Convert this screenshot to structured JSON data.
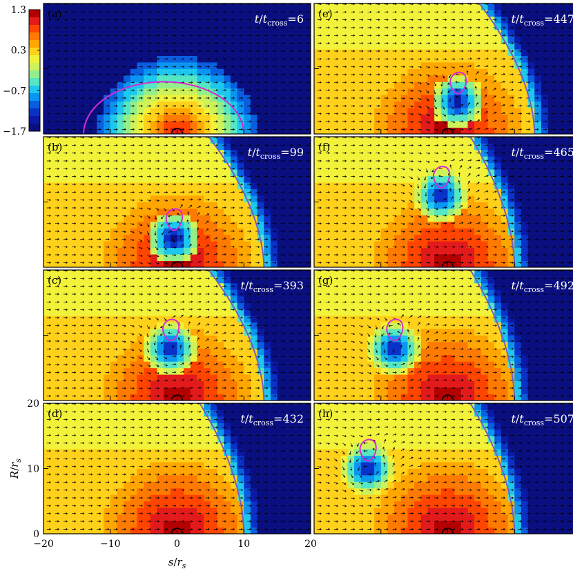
{
  "colorbar": {
    "ticks": [
      {
        "value": 1.3,
        "label": "1.3"
      },
      {
        "value": 0.3,
        "label": "0.3"
      },
      {
        "value": -0.7,
        "label": "−0.7"
      },
      {
        "value": -1.7,
        "label": "−1.7"
      }
    ],
    "range": [
      -1.7,
      1.3
    ],
    "levels": [
      1.3,
      1.1,
      0.9,
      0.7,
      0.5,
      0.3,
      0.1,
      -0.1,
      -0.3,
      -0.5,
      -0.7,
      -0.9,
      -1.1,
      -1.3,
      -1.5,
      -1.7
    ],
    "colors": [
      "#b30000",
      "#e31a1c",
      "#ff4500",
      "#ff7a00",
      "#ffa600",
      "#ffd11a",
      "#f2f23a",
      "#cdf25a",
      "#93ef8a",
      "#55e6c3",
      "#1dc7ee",
      "#0a95f0",
      "#0a5ee0",
      "#0a32c8",
      "#0a1aa6",
      "#0a0f80"
    ]
  },
  "time_symbol": "t",
  "time_sub": "cross",
  "chart_data": [
    {
      "type": "heatmap",
      "panel": "(a)",
      "time": 6,
      "front_x_at_base": 1,
      "front_bulge": "spherical",
      "cavity": null
    },
    {
      "type": "heatmap",
      "panel": "(b)",
      "time": 99,
      "front_x_at_base": 13,
      "cavity": {
        "x": -0.5,
        "R": 4.5
      }
    },
    {
      "type": "heatmap",
      "panel": "(c)",
      "time": 393,
      "front_x_at_base": 13,
      "cavity": {
        "x": -1,
        "R": 8
      }
    },
    {
      "type": "heatmap",
      "panel": "(d)",
      "time": 432,
      "front_x_at_base": 10,
      "cavity": null
    },
    {
      "type": "heatmap",
      "panel": "(e)",
      "time": 447,
      "front_x_at_base": 13,
      "cavity": {
        "x": 1.5,
        "R": 5
      }
    },
    {
      "type": "heatmap",
      "panel": "(f)",
      "time": 465,
      "front_x_at_base": 10,
      "cavity": {
        "x": -1,
        "R": 11
      }
    },
    {
      "type": "heatmap",
      "panel": "(g)",
      "time": 492,
      "front_x_at_base": 10,
      "cavity": {
        "x": -8,
        "R": 8
      }
    },
    {
      "type": "heatmap",
      "panel": "(h)",
      "time": 507,
      "front_x_at_base": 10,
      "cavity": {
        "x": -12,
        "R": 10
      }
    }
  ],
  "axes": {
    "xlabel_main": "s",
    "xlabel_sub": "s",
    "ylabel_main": "R",
    "ylabel_sub": "s",
    "x_ticks": [
      -20,
      -10,
      0,
      10,
      20
    ],
    "x_tick_labels": [
      "−20",
      "−10",
      "0",
      "10",
      "20"
    ],
    "y_ticks": [
      0,
      10,
      20
    ],
    "y_tick_labels": [
      "0",
      "10",
      "20"
    ],
    "xlim": [
      -20,
      20
    ],
    "ylim": [
      0,
      20
    ]
  },
  "overlay_colors": {
    "contour": "#d52bd5",
    "arrow": "#000000",
    "front": "#6e5fc7"
  }
}
